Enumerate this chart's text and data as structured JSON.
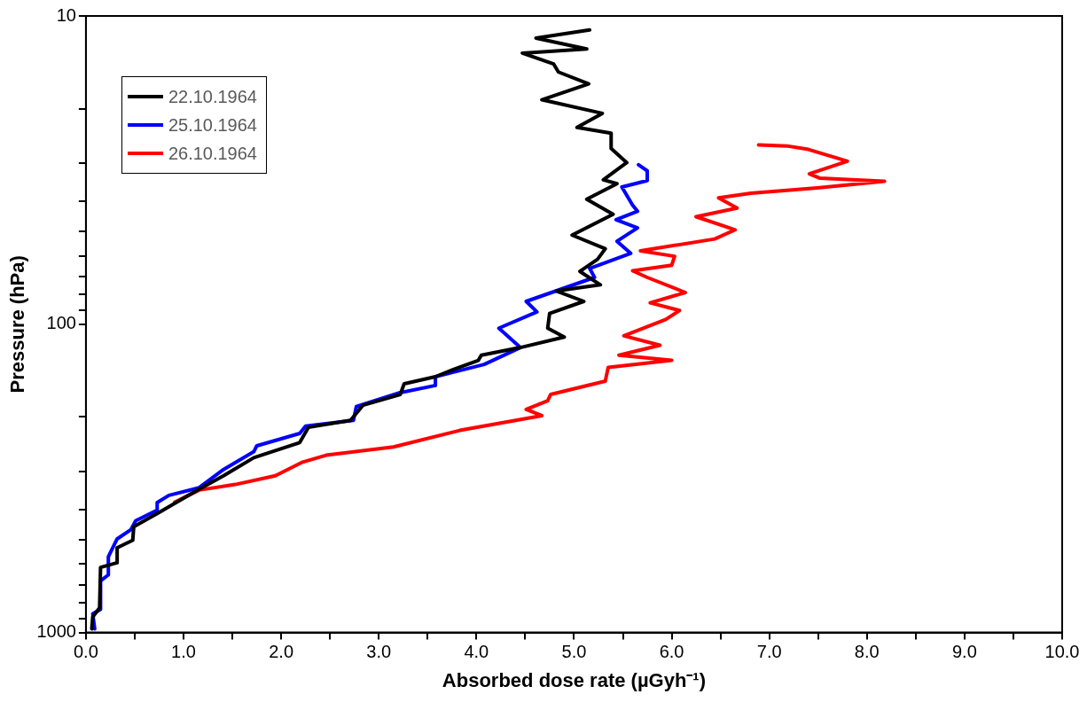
{
  "chart_data": {
    "type": "line",
    "xlabel": "Absorbed dose rate (µGyh⁻¹)",
    "ylabel": "Pressure (hPa)",
    "log": "y",
    "grid": false,
    "legend": "top left",
    "marker": "none",
    "line_style": "solid",
    "xlim": [
      0,
      10
    ],
    "xticks": [
      {
        "value": 0,
        "label": "0.0"
      },
      {
        "value": 0.5,
        "label": null
      },
      {
        "value": 1,
        "label": "1.0"
      },
      {
        "value": 1.5,
        "label": null
      },
      {
        "value": 2,
        "label": "2.0"
      },
      {
        "value": 2.5,
        "label": null
      },
      {
        "value": 3,
        "label": "3.0"
      },
      {
        "value": 3.5,
        "label": null
      },
      {
        "value": 4,
        "label": "4.0"
      },
      {
        "value": 4.5,
        "label": null
      },
      {
        "value": 5,
        "label": "5.0"
      },
      {
        "value": 5.5,
        "label": null
      },
      {
        "value": 6,
        "label": "6.0"
      },
      {
        "value": 6.5,
        "label": null
      },
      {
        "value": 7,
        "label": "7.0"
      },
      {
        "value": 7.5,
        "label": null
      },
      {
        "value": 8,
        "label": "8.0"
      },
      {
        "value": 8.5,
        "label": null
      },
      {
        "value": 9,
        "label": "9.0"
      },
      {
        "value": 9.5,
        "label": null
      },
      {
        "value": 10,
        "label": "10.0"
      }
    ],
    "ylim": [
      1000,
      10
    ],
    "yticks": [
      10,
      {
        "value": 20,
        "label": null
      },
      {
        "value": 30,
        "label": null
      },
      {
        "value": 40,
        "label": null
      },
      {
        "value": 50,
        "label": null
      },
      {
        "value": 60,
        "label": null
      },
      {
        "value": 70,
        "label": null
      },
      {
        "value": 80,
        "label": null
      },
      {
        "value": 90,
        "label": null
      },
      100,
      {
        "value": 200,
        "label": null
      },
      {
        "value": 300,
        "label": null
      },
      {
        "value": 400,
        "label": null
      },
      {
        "value": 500,
        "label": null
      },
      {
        "value": 600,
        "label": null
      },
      {
        "value": 700,
        "label": null
      },
      {
        "value": 800,
        "label": null
      },
      {
        "value": 900,
        "label": null
      },
      1000
    ],
    "series": [
      {
        "name": "22.10.1964",
        "color": "#000000",
        "x": [
          5.16,
          4.61,
          5.13,
          4.47,
          4.79,
          4.84,
          5.15,
          4.67,
          5.29,
          5.03,
          5.38,
          5.38,
          5.54,
          5.3,
          5.44,
          5.13,
          5.4,
          4.98,
          5.32,
          5.24,
          5.06,
          5.27,
          4.82,
          5.1,
          4.75,
          4.73,
          4.9,
          4.45,
          4.05,
          4.02,
          3.77,
          3.58,
          3.26,
          3.22,
          2.84,
          2.71,
          2.28,
          2.19,
          1.72,
          1.41,
          1.13,
          0.76,
          0.49,
          0.48,
          0.32,
          0.32,
          0.15,
          0.14,
          0.07,
          0.06
        ],
        "values": [
          11.1,
          11.8,
          12.8,
          13.2,
          14.3,
          15.2,
          16.6,
          18.7,
          20.7,
          23.0,
          24.0,
          26.9,
          29.9,
          34.0,
          35.0,
          39.3,
          44.0,
          51.4,
          56.9,
          61.6,
          67.4,
          74.5,
          78.0,
          84.3,
          92.2,
          103,
          110,
          119,
          126,
          131,
          140,
          148,
          156,
          169,
          183,
          205,
          216,
          242,
          271,
          310,
          347,
          406,
          454,
          502,
          531,
          594,
          615,
          832,
          890,
          973
        ]
      },
      {
        "name": "25.10.1964",
        "color": "#0000ff",
        "x": [
          5.66,
          5.75,
          5.75,
          5.49,
          5.6,
          5.65,
          5.43,
          5.65,
          5.44,
          5.58,
          5.16,
          5.21,
          4.51,
          4.62,
          4.23,
          4.45,
          4.08,
          3.58,
          3.58,
          3.21,
          2.77,
          2.74,
          2.25,
          2.19,
          1.75,
          1.72,
          1.41,
          1.16,
          0.85,
          0.73,
          0.73,
          0.51,
          0.46,
          0.32,
          0.23,
          0.23,
          0.15,
          0.15,
          0.07,
          0.09
        ],
        "values": [
          30.4,
          31.8,
          34.2,
          35.9,
          41.1,
          43.0,
          45.8,
          48.7,
          53.8,
          58.9,
          65.9,
          70.5,
          84.3,
          91.2,
          103,
          119,
          135,
          148,
          158,
          167,
          185,
          205,
          214,
          226,
          248,
          259,
          296,
          339,
          359,
          379,
          401,
          434,
          464,
          497,
          568,
          650,
          680,
          841,
          870,
          973
        ]
      },
      {
        "name": "26.10.1964",
        "color": "#ff0000",
        "x": [
          6.89,
          7.18,
          7.4,
          7.8,
          7.41,
          7.52,
          8.18,
          7.49,
          6.81,
          6.48,
          6.67,
          6.25,
          6.65,
          6.44,
          5.68,
          6.03,
          6.0,
          5.6,
          5.75,
          6.14,
          5.78,
          6.08,
          5.94,
          5.51,
          5.88,
          5.46,
          6.0,
          5.35,
          5.32,
          4.76,
          4.73,
          4.51,
          4.67,
          3.83,
          3.15,
          2.46,
          2.22,
          1.94,
          1.53,
          1.16,
          0.91
        ],
        "values": [
          26.2,
          26.4,
          27.1,
          29.6,
          32.5,
          33.6,
          34.4,
          36.1,
          37.6,
          38.9,
          42.0,
          44.8,
          49.4,
          52.9,
          57.8,
          60.2,
          64.4,
          67.1,
          70.5,
          78.9,
          85.2,
          90.2,
          96.5,
          109,
          117,
          126,
          131,
          138,
          153,
          169,
          177,
          189,
          198,
          221,
          250,
          266,
          280,
          310,
          331,
          345,
          378
        ]
      }
    ]
  }
}
